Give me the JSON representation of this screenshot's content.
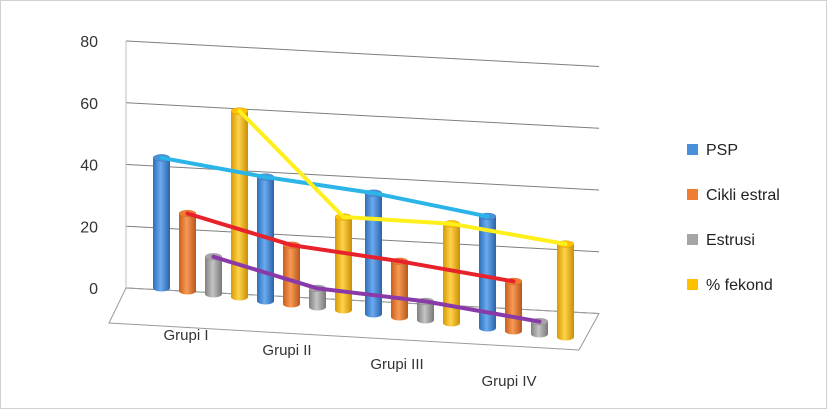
{
  "chart_data": {
    "type": "bar",
    "title": "",
    "xlabel": "",
    "ylabel": "",
    "ylim": [
      0,
      80
    ],
    "yticks": [
      0,
      20,
      40,
      60,
      80
    ],
    "grid": true,
    "legend_position": "right",
    "style": "3d-clustered-columns-with-lines",
    "categories": [
      "Grupi I",
      "Grupi II",
      "Grupi III",
      "Grupi IV"
    ],
    "series": [
      {
        "name": "PSP",
        "color": "#4a8fd9",
        "line_color": "#2ab4e8",
        "values": [
          42,
          40,
          39,
          36
        ]
      },
      {
        "name": "Cikli estral",
        "color": "#ee7d31",
        "line_color": "#e8222a",
        "values": [
          25,
          19,
          18,
          16
        ]
      },
      {
        "name": "Estrusi",
        "color": "#a5a5a5",
        "line_color": "#8a3aa8",
        "values": [
          12,
          6,
          6,
          4
        ]
      },
      {
        "name": "% fekond",
        "color": "#ffc000",
        "line_color": "#ffef1a",
        "values": [
          60,
          30,
          32,
          30
        ]
      }
    ]
  }
}
